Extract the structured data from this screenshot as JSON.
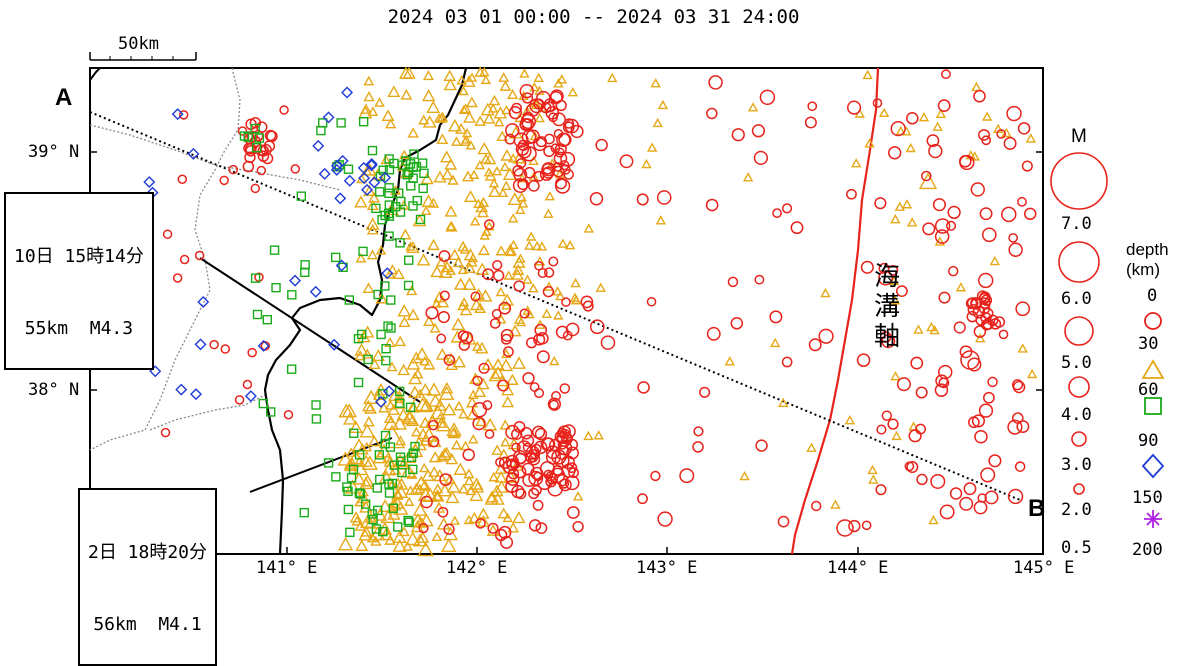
{
  "title": "2024 03 01 00:00 -- 2024 03 31 24:00",
  "scale_bar_label": "50km",
  "section_line": {
    "start_label": "A",
    "end_label": "B"
  },
  "trench_label": "海溝軸",
  "annotations": [
    {
      "date_time": "10日 15時14分",
      "depth_mag": "55km  M4.3"
    },
    {
      "date_time": "2日 18時20分",
      "depth_mag": "56km  M4.1"
    }
  ],
  "axes": {
    "lat_ticks": [
      "39° N",
      "38° N"
    ],
    "lon_ticks": [
      "141° E",
      "142° E",
      "143° E",
      "144° E",
      "145° E"
    ]
  },
  "legend": {
    "magnitude_title": "M",
    "magnitude_values": [
      "7.0",
      "6.0",
      "5.0",
      "4.0",
      "3.0",
      "2.0",
      "0.5"
    ],
    "depth_title": "depth\n(km)",
    "depth_values": [
      "0",
      "30",
      "60",
      "90",
      "150",
      "200"
    ],
    "depth_classes": [
      {
        "range": "0-30",
        "symbol": "circle",
        "color": "#e8231c"
      },
      {
        "range": "30-60",
        "symbol": "triangle",
        "color": "#e6a817"
      },
      {
        "range": "60-90",
        "symbol": "square",
        "color": "#1aab1a"
      },
      {
        "range": "90-150",
        "symbol": "diamond",
        "color": "#1e3bd6"
      },
      {
        "range": "150-200",
        "symbol": "star",
        "color": "#b020e0"
      }
    ]
  },
  "colors": {
    "shallow": "#e8231c",
    "mid": "#e6a817",
    "deep": "#1aab1a",
    "deeper": "#1e3bd6",
    "deepest": "#b020e0",
    "trench_axis": "#e8231c",
    "coastline": "#000000",
    "prefecture_border": "#888888"
  }
}
